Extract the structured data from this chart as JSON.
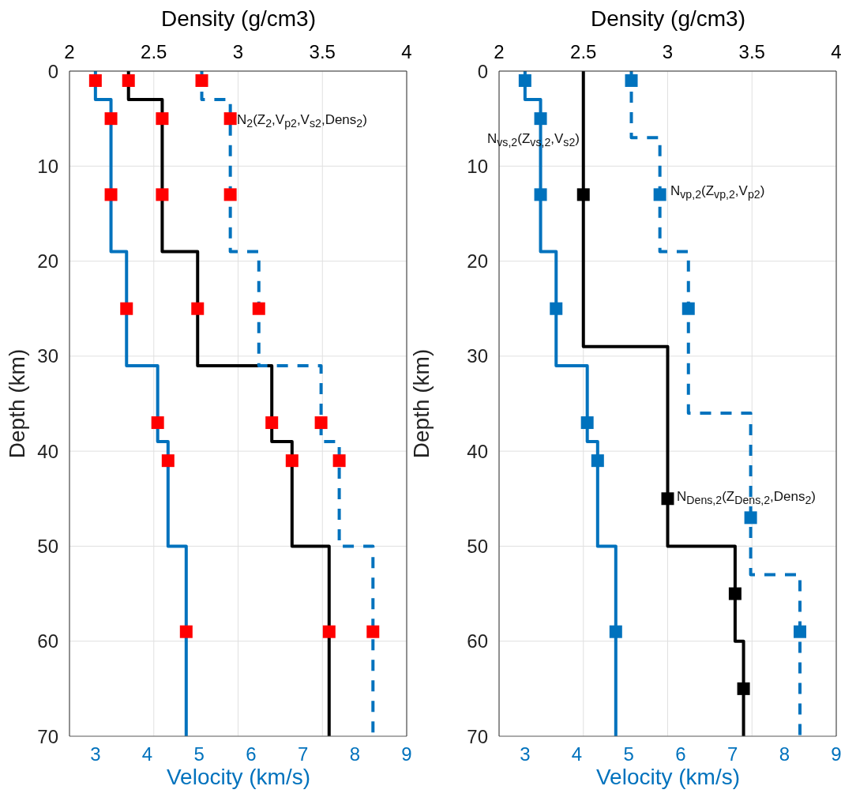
{
  "chart_data": [
    {
      "type": "line",
      "xlabel": "Velocity (km/s)",
      "x2label": "Density (g/cm3)",
      "ylabel": "Depth (km)",
      "xlim": [
        2.5,
        9
      ],
      "xticks": [
        3,
        4,
        5,
        6,
        7,
        8,
        9
      ],
      "x2lim": [
        2,
        4
      ],
      "x2ticks": [
        2,
        2.5,
        3,
        3.5,
        4
      ],
      "ylim": [
        70,
        0
      ],
      "yticks": [
        0,
        10,
        20,
        30,
        40,
        50,
        60,
        70
      ],
      "grid": true,
      "annotations": [
        "N$_{2}$(Z$_{2}$,V$_{p2}$,V$_{s2}$,Dens$_{2}$)"
      ],
      "series": [
        {
          "color": "#0072bd",
          "line_style": "solid",
          "x": [
            3.0,
            3.0,
            3.3,
            3.3,
            3.6,
            3.6,
            4.2,
            4.2,
            4.4,
            4.4,
            4.75,
            4.75
          ],
          "values": [
            0,
            3,
            3,
            19,
            19,
            31,
            31,
            39,
            39,
            50,
            50,
            70
          ]
        },
        {
          "axis": "x2",
          "color": "#000000",
          "line_style": "solid",
          "x": [
            2.35,
            2.35,
            2.55,
            2.55,
            2.76,
            2.76,
            3.2,
            3.2,
            3.32,
            3.32,
            3.54,
            3.54
          ],
          "values": [
            0,
            3,
            3,
            19,
            19,
            31,
            31,
            39,
            39,
            50,
            50,
            70
          ]
        },
        {
          "color": "#0072bd",
          "line_style": "dashed",
          "x": [
            5.05,
            5.05,
            5.6,
            5.6,
            6.15,
            6.15,
            7.35,
            7.35,
            7.7,
            7.7,
            8.35,
            8.35
          ],
          "values": [
            0,
            3,
            3,
            19,
            19,
            31,
            31,
            39,
            39,
            50,
            50,
            70
          ]
        },
        {
          "type": "scatter",
          "color": "#ff0000",
          "marker": "square",
          "x": [
            3.0,
            3.3,
            3.3,
            3.6,
            4.2,
            4.4,
            4.75
          ],
          "values": [
            1,
            5,
            13,
            25,
            37,
            41,
            59
          ]
        },
        {
          "type": "scatter",
          "axis": "x2",
          "color": "#ff0000",
          "marker": "square",
          "x": [
            2.35,
            2.55,
            2.55,
            2.76,
            3.2,
            3.32,
            3.54
          ],
          "values": [
            1,
            5,
            13,
            25,
            37,
            41,
            59
          ]
        },
        {
          "type": "scatter",
          "color": "#ff0000",
          "marker": "square",
          "x": [
            5.05,
            5.6,
            5.6,
            6.15,
            7.35,
            7.7,
            8.35
          ],
          "values": [
            1,
            5,
            13,
            25,
            37,
            41,
            59
          ]
        }
      ]
    },
    {
      "type": "line",
      "xlabel": "Velocity (km/s)",
      "x2label": "Density (g/cm3)",
      "ylabel": "Depth (km)",
      "xlim": [
        2.5,
        9
      ],
      "xticks": [
        3,
        4,
        5,
        6,
        7,
        8,
        9
      ],
      "x2lim": [
        2,
        4
      ],
      "x2ticks": [
        2,
        2.5,
        3,
        3.5,
        4
      ],
      "ylim": [
        70,
        0
      ],
      "yticks": [
        0,
        10,
        20,
        30,
        40,
        50,
        60,
        70
      ],
      "grid": true,
      "annotations": [
        "N$_{vs,2}$(Z$_{vs,2}$,V$_{s2}$)",
        "N$_{vp,2}$(Z$_{vp,2}$,V$_{p2}$)",
        "N$_{Dens,2}$(Z$_{Dens,2}$,Dens$_{2}$)"
      ],
      "series": [
        {
          "color": "#0072bd",
          "line_style": "solid",
          "x": [
            3.0,
            3.0,
            3.3,
            3.3,
            3.6,
            3.6,
            4.2,
            4.2,
            4.4,
            4.4,
            4.75,
            4.75
          ],
          "values": [
            0,
            3,
            3,
            19,
            19,
            31,
            31,
            39,
            39,
            50,
            50,
            70
          ]
        },
        {
          "axis": "x2",
          "color": "#000000",
          "line_style": "solid",
          "x": [
            2.5,
            2.5,
            3.0,
            3.0,
            3.4,
            3.4,
            3.45,
            3.45
          ],
          "values": [
            0,
            29,
            29,
            50,
            50,
            60,
            60,
            70
          ]
        },
        {
          "color": "#0072bd",
          "line_style": "dashed",
          "x": [
            5.05,
            5.05,
            5.6,
            5.6,
            6.15,
            6.15,
            7.35,
            7.35,
            8.3,
            8.3
          ],
          "values": [
            0,
            7,
            7,
            19,
            19,
            36,
            36,
            53,
            53,
            70
          ]
        },
        {
          "type": "scatter",
          "color": "#0072bd",
          "marker": "square",
          "x": [
            3.0,
            3.3,
            3.3,
            3.6,
            4.2,
            4.4,
            4.75
          ],
          "values": [
            1,
            5,
            13,
            25,
            37,
            41,
            59
          ]
        },
        {
          "type": "scatter",
          "axis": "x2",
          "color": "#000000",
          "marker": "square",
          "x": [
            2.5,
            3.0,
            3.4,
            3.45
          ],
          "values": [
            13,
            45,
            55,
            65
          ]
        },
        {
          "type": "scatter",
          "color": "#0072bd",
          "marker": "square",
          "x": [
            5.05,
            5.6,
            6.15,
            7.35,
            8.3
          ],
          "values": [
            1,
            13,
            25,
            47,
            59
          ]
        }
      ]
    }
  ]
}
